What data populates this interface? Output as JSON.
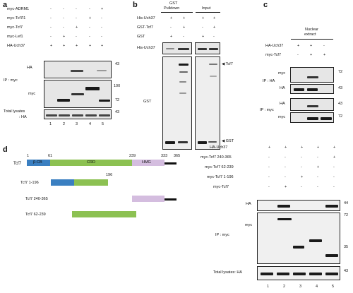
{
  "panels": [
    "a",
    "b",
    "c",
    "d"
  ],
  "panel_a": {
    "rows": [
      {
        "label": "myc-ADRM1",
        "values": [
          "-",
          "-",
          "-",
          "-",
          "+"
        ]
      },
      {
        "label": "myc-Tcf7l1",
        "values": [
          "-",
          "-",
          "-",
          "+",
          "-"
        ]
      },
      {
        "label": "myc-Tcf7",
        "values": [
          "-",
          "-",
          "+",
          "-",
          "-"
        ]
      },
      {
        "label": "myc-Lef1",
        "values": [
          "-",
          "+",
          "-",
          "-",
          "-"
        ]
      },
      {
        "label": "HA-Uch37",
        "values": [
          "+",
          "+",
          "+",
          "+",
          "+"
        ]
      }
    ],
    "blot_labels": {
      "ha": "HA",
      "myc": "myc",
      "ip": "IP : myc",
      "total": "Total lysates",
      "total_ha": ": HA"
    },
    "markers": {
      "m43a": "43",
      "m100": "100",
      "m72": "72",
      "m43b": "43"
    },
    "lanes": [
      "1",
      "2",
      "3",
      "4",
      "5"
    ]
  },
  "panel_b": {
    "headers": {
      "pulldown_1": "GST",
      "pulldown_2": "Pulldown",
      "input": "Input"
    },
    "rows": [
      {
        "label": "His-Uch37",
        "values": [
          "+",
          "+",
          "+",
          "+"
        ]
      },
      {
        "label": "GST-Tcf7",
        "values": [
          "-",
          "+",
          "-",
          "+"
        ]
      },
      {
        "label": "GST",
        "values": [
          "+",
          "-",
          "+",
          "-"
        ]
      }
    ],
    "blot_labels": {
      "his": "His-Uch37",
      "gst": "GST"
    },
    "arrows": {
      "tcf7": "Tcf7",
      "gst": "GST"
    }
  },
  "panel_c": {
    "header_1": "Nuclear",
    "header_2": "extract",
    "rows": [
      {
        "label": "HA-Uch37",
        "values": [
          "+",
          "+",
          "-"
        ]
      },
      {
        "label": "myc-Tcf7",
        "values": [
          "-",
          "+",
          "+"
        ]
      }
    ],
    "blot_labels": {
      "myc": "myc",
      "ha": "HA",
      "ip_ha": "IP : HA",
      "ha2": "HA",
      "myc2": "myc",
      "ip_myc": "IP : myc"
    },
    "markers": {
      "m72a": "72",
      "m43a": "43",
      "m43b": "43",
      "m72b": "72"
    }
  },
  "panel_d": {
    "diagram": {
      "name": "Tcf7",
      "coords": {
        "c1": "1",
        "c61": "61",
        "c239": "239",
        "c333": "333",
        "c365": "365"
      },
      "domains": {
        "bcb": "β-CB",
        "crd": "CRD",
        "hmg": "HMG"
      },
      "constructs": [
        {
          "label": "Tcf7 1-196",
          "end": "196"
        },
        {
          "label": "Tcf7 240-365"
        },
        {
          "label": "Tcf7 62-239"
        }
      ],
      "colors": {
        "bcb": "#3a7fc1",
        "crd": "#8cc152",
        "hmg": "#d4bddf",
        "tail": "#111111"
      }
    },
    "rows": [
      {
        "label": "HA-Uch37",
        "values": [
          "+",
          "+",
          "+",
          "+",
          "+"
        ]
      },
      {
        "label": "myc-Tcf7 240-365",
        "values": [
          "-",
          "-",
          "-",
          "-",
          "+"
        ]
      },
      {
        "label": "myc-Tcf7 62-239",
        "values": [
          "-",
          "-",
          "-",
          "+",
          "-"
        ]
      },
      {
        "label": "myc-Tcf7 1-196",
        "values": [
          "-",
          "-",
          "+",
          "-",
          "-"
        ]
      },
      {
        "label": "myc-Tcf7",
        "values": [
          "-",
          "+",
          "-",
          "-",
          "-"
        ]
      }
    ],
    "blot_labels": {
      "ha": "HA",
      "myc": "myc",
      "ip": "IP : myc",
      "total": "Total lysates: HA"
    },
    "markers": {
      "m44": "44",
      "m72": "72",
      "m35": "35",
      "m43": "43"
    },
    "lanes": [
      "1",
      "2",
      "3",
      "4",
      "5"
    ]
  }
}
